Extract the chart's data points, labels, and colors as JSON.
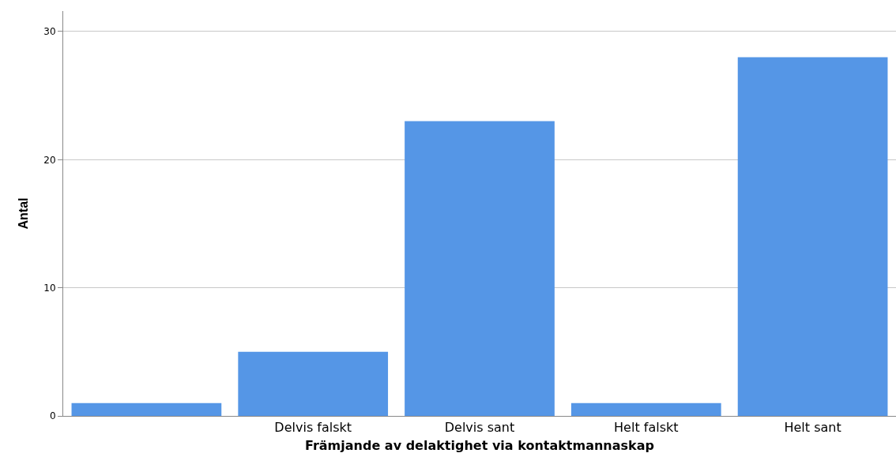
{
  "chart_data": {
    "type": "bar",
    "xlabel": "Främjande av delaktighet via kontaktmannaskap",
    "ylabel": "Antal",
    "categories": [
      null,
      "Delvis falskt",
      "Delvis sant",
      "Helt falskt",
      "Helt sant"
    ],
    "values": [
      1,
      5,
      23,
      1,
      28
    ],
    "color": "#5596e6",
    "ylim": [
      0,
      31.6
    ],
    "yticks": [
      0,
      10,
      20,
      30
    ],
    "grid": "y"
  }
}
